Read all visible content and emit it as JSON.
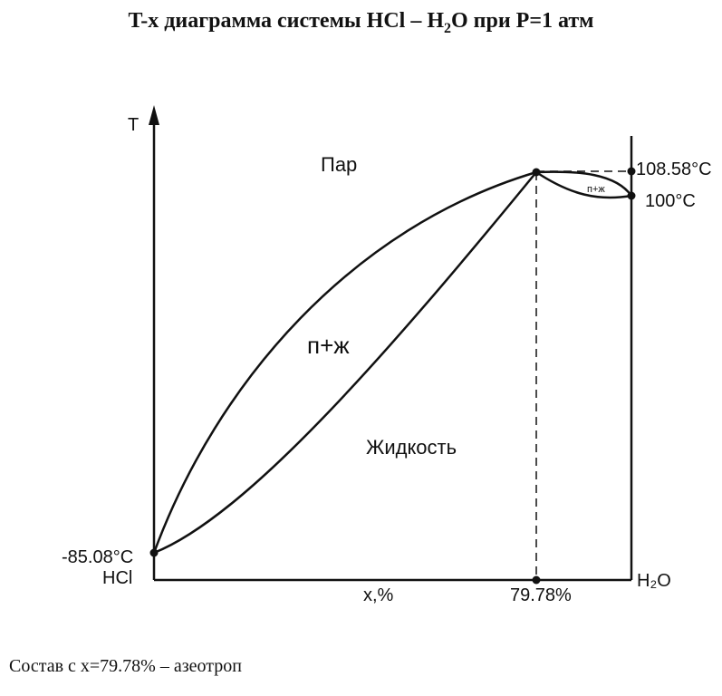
{
  "title": {
    "prefix": "T-x диаграмма системы HCl – H",
    "sub": "2",
    "suffix": "O при P=1 атм"
  },
  "axes": {
    "y_label": "T",
    "x_label": "x,%",
    "left_component": "HCl",
    "right_component": "H₂O"
  },
  "points": {
    "hcl_boiling": "-85.08°C",
    "water_boiling": "100°C",
    "azeotrope_temp": "108.58°C",
    "azeotrope_composition": "79.78%"
  },
  "regions": {
    "vapor": "Пар",
    "two_phase_main": "п+ж",
    "two_phase_small": "п+ж",
    "liquid": "Жидкость"
  },
  "footnote": "Состав с x=79.78% – азеотроп"
}
